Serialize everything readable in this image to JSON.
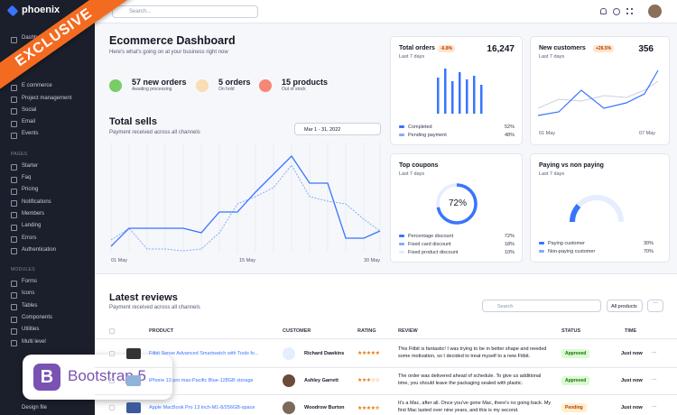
{
  "brand": "phoenix",
  "search_placeholder": "Search...",
  "sidebar": [
    {
      "items": [
        "Dashboard"
      ]
    },
    {
      "items": [
        "E commerce",
        "Project management",
        "Social",
        "Email",
        "Events"
      ]
    },
    {
      "title": "PAGES",
      "items": [
        "Starter",
        "Faq",
        "Pricing",
        "Notifications",
        "Members",
        "Landing",
        "Errors",
        "Authentication"
      ]
    },
    {
      "title": "MODULES",
      "items": [
        "Forms",
        "Icons",
        "Tables",
        "Components",
        "Utilities",
        "Multi level"
      ]
    }
  ],
  "sidebar_footer": "Design file",
  "header": {
    "title": "Ecommerce Dashboard",
    "subtitle": "Here's what's going on at your business right now"
  },
  "stats": [
    {
      "title": "57 new orders",
      "sub": "Awaiting processing"
    },
    {
      "title": "5 orders",
      "sub": "On hold"
    },
    {
      "title": "15 products",
      "sub": "Out of stock"
    }
  ],
  "total_sells": {
    "title": "Total sells",
    "subtitle": "Payment received across all channels",
    "range": "Mar 1 - 31, 2022",
    "x_labels": [
      "01 May",
      "15 May",
      "30 May"
    ]
  },
  "cards": {
    "total_orders": {
      "title": "Total orders",
      "badge": "-6.8%",
      "value": "16,247",
      "period": "Last 7 days",
      "legend": [
        [
          "Completed",
          "52%"
        ],
        [
          "Pending payment",
          "48%"
        ]
      ]
    },
    "new_customers": {
      "title": "New customers",
      "badge": "+26.5%",
      "value": "356",
      "period": "Last 7 days",
      "x_labels": [
        "01 May",
        "07 May"
      ]
    },
    "top_coupons": {
      "title": "Top coupons",
      "period": "Last 7 days",
      "center": "72%",
      "legend": [
        [
          "Percentage discount",
          "72%"
        ],
        [
          "Fixed card discount",
          "18%"
        ],
        [
          "Fixed product discount",
          "10%"
        ]
      ]
    },
    "paying": {
      "title": "Paying vs non paying",
      "period": "Last 7 days",
      "legend": [
        [
          "Paying customer",
          "30%"
        ],
        [
          "Non-paying customer",
          "70%"
        ]
      ]
    }
  },
  "reviews": {
    "title": "Latest reviews",
    "subtitle": "Payment received across all channels",
    "search": "Search",
    "filter": "All products",
    "columns": [
      "PRODUCT",
      "CUSTOMER",
      "RATING",
      "REVIEW",
      "STATUS",
      "TIME"
    ],
    "rows": [
      {
        "product": "Fitbit Sense Advanced Smartwatch with Tools fo...",
        "customer": "Richard Dawkins",
        "rating": 5,
        "review": "This Fitbit is fantastic! I was trying to be in better shape and needed some motivation, so I decided to treat myself to a new Fitbit.",
        "status": "Approved",
        "time": "Just now"
      },
      {
        "product": "iPhone 13 pro max-Pacific Blue-128GB storage",
        "customer": "Ashley Garrett",
        "rating": 3,
        "review": "The order was delivered ahead of schedule. To give us additional time, you should leave the packaging sealed with plastic.",
        "status": "Approved",
        "time": "Just now"
      },
      {
        "product": "Apple MacBook Pro 13 inch-M1-8/256GB-space",
        "customer": "Woodrow Burton",
        "rating": 4.5,
        "review": "It's a Mac, after all. Once you've gone Mac, there's no going back. My first Mac lasted over nine years, and this is my second.",
        "status": "Pending",
        "time": "Just now"
      }
    ]
  },
  "ribbon": "EXCLUSIVE",
  "badge": "Bootstrap 5"
}
